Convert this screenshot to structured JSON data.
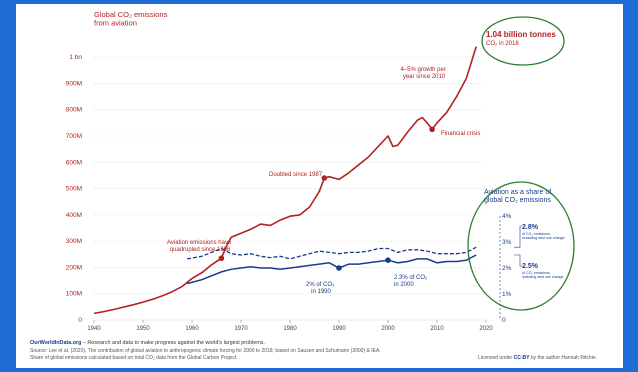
{
  "chart_data": {
    "type": "line",
    "title_line1": "Global CO₂ emissions",
    "title_line2": "from aviation",
    "colors": {
      "emissions": "#b22222",
      "share": "#1a3a8c",
      "oval": "#2e7d32",
      "background": "#1f6ed6"
    },
    "emissions_axis": {
      "ylim": [
        0,
        1050000000
      ],
      "ticks": [
        {
          "value": 0,
          "label": "0"
        },
        {
          "value": 100000000,
          "label": "100M"
        },
        {
          "value": 200000000,
          "label": "200M"
        },
        {
          "value": 300000000,
          "label": "300M"
        },
        {
          "value": 400000000,
          "label": "400M"
        },
        {
          "value": 500000000,
          "label": "500M"
        },
        {
          "value": 600000000,
          "label": "600M"
        },
        {
          "value": 700000000,
          "label": "700M"
        },
        {
          "value": 800000000,
          "label": "800M"
        },
        {
          "value": 900000000,
          "label": "900M"
        },
        {
          "value": 1000000000,
          "label": "1 bn"
        }
      ]
    },
    "x_axis": {
      "xlim": [
        1940,
        2020
      ],
      "ticks": [
        "1940",
        "1950",
        "1960",
        "1970",
        "1980",
        "1990",
        "2000",
        "2010",
        "2020"
      ]
    },
    "share_axis": {
      "title_line1": "Aviation as a share of",
      "title_line2": "global CO₂ emissions",
      "ylim": [
        0,
        4
      ],
      "ticks": [
        {
          "value": 0,
          "label": "0"
        },
        {
          "value": 1,
          "label": "1%"
        },
        {
          "value": 2,
          "label": "2%"
        },
        {
          "value": 3,
          "label": "3%"
        },
        {
          "value": 4,
          "label": "4%"
        }
      ]
    },
    "emissions_series": {
      "x": [
        1940,
        1942,
        1944,
        1946,
        1948,
        1950,
        1952,
        1954,
        1956,
        1958,
        1960,
        1962,
        1964,
        1966,
        1967,
        1968,
        1970,
        1972,
        1974,
        1976,
        1978,
        1980,
        1982,
        1984,
        1986,
        1987,
        1988,
        1990,
        1992,
        1994,
        1996,
        1998,
        2000,
        2001,
        2002,
        2004,
        2006,
        2007,
        2008,
        2009,
        2010,
        2012,
        2014,
        2016,
        2018
      ],
      "y": [
        25000000,
        32000000,
        40000000,
        49000000,
        58000000,
        68000000,
        79000000,
        92000000,
        108000000,
        128000000,
        158000000,
        180000000,
        210000000,
        235000000,
        280000000,
        315000000,
        330000000,
        345000000,
        365000000,
        360000000,
        380000000,
        395000000,
        400000000,
        430000000,
        490000000,
        540000000,
        545000000,
        535000000,
        560000000,
        590000000,
        620000000,
        660000000,
        700000000,
        660000000,
        665000000,
        715000000,
        760000000,
        770000000,
        750000000,
        725000000,
        750000000,
        790000000,
        850000000,
        920000000,
        1040000000
      ]
    },
    "share_excluding_land_use": {
      "x": [
        1959,
        1962,
        1964,
        1966,
        1968,
        1970,
        1972,
        1974,
        1976,
        1978,
        1980,
        1982,
        1984,
        1986,
        1988,
        1990,
        1992,
        1994,
        1996,
        1998,
        2000,
        2002,
        2004,
        2006,
        2008,
        2010,
        2012,
        2014,
        2016,
        2018
      ],
      "y": [
        2.35,
        2.45,
        2.6,
        2.75,
        2.55,
        2.5,
        2.55,
        2.45,
        2.4,
        2.45,
        2.35,
        2.45,
        2.55,
        2.65,
        2.6,
        2.55,
        2.6,
        2.6,
        2.65,
        2.75,
        2.75,
        2.6,
        2.7,
        2.7,
        2.65,
        2.55,
        2.55,
        2.55,
        2.6,
        2.8
      ]
    },
    "share_including_land_use": {
      "x": [
        1959,
        1962,
        1964,
        1966,
        1968,
        1970,
        1972,
        1974,
        1976,
        1978,
        1980,
        1982,
        1984,
        1986,
        1988,
        1990,
        1992,
        1994,
        1996,
        1998,
        2000,
        2002,
        2004,
        2006,
        2008,
        2010,
        2012,
        2014,
        2016,
        2018
      ],
      "y": [
        1.4,
        1.55,
        1.7,
        1.85,
        1.95,
        2.0,
        2.05,
        2.0,
        2.0,
        1.95,
        2.0,
        2.05,
        2.1,
        2.15,
        2.2,
        2.0,
        2.15,
        2.15,
        2.2,
        2.25,
        2.3,
        2.2,
        2.25,
        2.35,
        2.35,
        2.2,
        2.25,
        2.25,
        2.3,
        2.5
      ]
    },
    "highlight_points": [
      {
        "series": "emissions",
        "x": 1966,
        "y": 235000000
      },
      {
        "series": "emissions",
        "x": 1987,
        "y": 540000000
      },
      {
        "series": "emissions",
        "x": 2009,
        "y": 725000000
      },
      {
        "series": "share",
        "x": 1990,
        "y": 2.0
      },
      {
        "series": "share",
        "x": 2000,
        "y": 2.3
      }
    ],
    "annotations": {
      "quadrupled_line1": "Aviation emissions have",
      "quadrupled_line2": "quadrupled since 1966",
      "doubled": "Doubled since 1987",
      "growth_line1": "4–5% growth per",
      "growth_line2": "year since 2010",
      "financial_crisis": "Financial crisis",
      "share_1990_line1": "2% of CO₂",
      "share_1990_line2": "in 1990",
      "share_2000_line1": "2.3% of CO₂",
      "share_2000_line2": "in 2000",
      "total_value": "1.04 billion tonnes",
      "total_sub": "CO₂ in 2018"
    },
    "end_labels": [
      {
        "value": "2.8%",
        "line1": "of CO₂ emissions,",
        "line2": "excluding land use change"
      },
      {
        "value": "2.5%",
        "line1": "of CO₂ emissions,",
        "line2": "including land use change"
      }
    ]
  },
  "footer": {
    "brand": "OurWorldInData.org",
    "tagline": " – Research and data to make progress against the world's largest problems.",
    "source": "Source: Lee et al. (2020). The contribution of global aviation to anthropogenic climate forcing for 2000 to 2018; based on Sausen and Schumann (2000) & IEA.",
    "share_note": "Share of global emissions calculated based on total CO₂ data from the Global Carbon Project.",
    "license_prefix": "Licensed under ",
    "license_cc": "CC-BY",
    "license_suffix": " by the author Hannah Ritchie."
  }
}
